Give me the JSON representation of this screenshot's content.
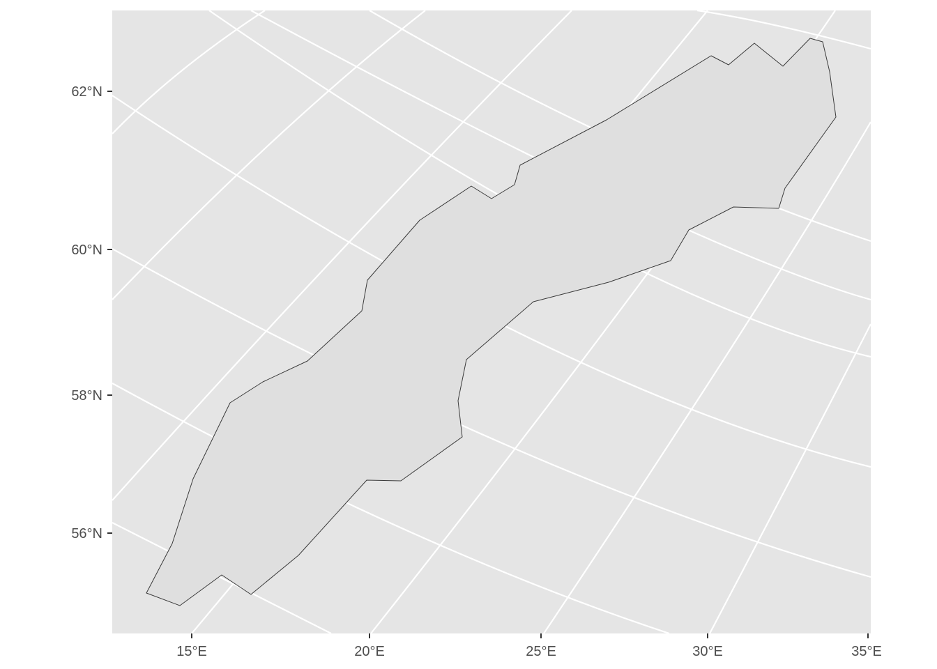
{
  "map": {
    "panel_color": "#e5e5e5",
    "grid_color": "#ffffff",
    "region_fill": "#dfdfdf",
    "region_stroke": "#3a3a3a",
    "axes": {
      "x_ticks": [
        "15°E",
        "20°E",
        "25°E",
        "30°E",
        "35°E"
      ],
      "y_ticks": [
        "62°N",
        "60°N",
        "58°N",
        "56°N"
      ]
    },
    "region": {
      "name": "",
      "shape": "elongated polygon oriented southwest to northeast"
    }
  }
}
